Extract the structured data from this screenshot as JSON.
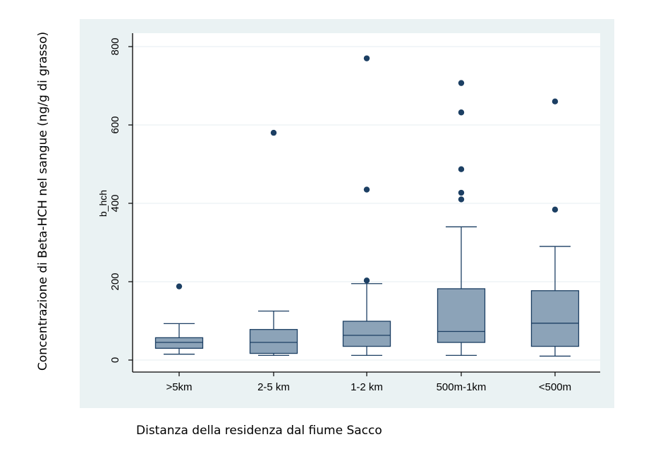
{
  "chart_data": {
    "type": "box",
    "outer_ylabel": "Concentrazione di Beta-HCH nel sangue (ng/g di grasso)",
    "inner_ylabel": "b_hch",
    "xlabel": "Distanza della residenza dal fiume Sacco",
    "categories": [
      ">5km",
      "2-5  km",
      "1-2 km",
      "500m-1km",
      "<500m"
    ],
    "yticks": [
      "0",
      "200",
      "400",
      "600",
      "800"
    ],
    "ylim": [
      0,
      800
    ],
    "grid": true,
    "boxes": [
      {
        "category": ">5km",
        "whisker_low": 15,
        "q1": 30,
        "median": 45,
        "q3": 57,
        "whisker_high": 93,
        "outliers": [
          188
        ]
      },
      {
        "category": "2-5  km",
        "whisker_low": 12,
        "q1": 17,
        "median": 45,
        "q3": 78,
        "whisker_high": 125,
        "outliers": [
          580
        ]
      },
      {
        "category": "1-2 km",
        "whisker_low": 12,
        "q1": 35,
        "median": 63,
        "q3": 99,
        "whisker_high": 195,
        "outliers": [
          203,
          435,
          770
        ]
      },
      {
        "category": "500m-1km",
        "whisker_low": 12,
        "q1": 45,
        "median": 73,
        "q3": 182,
        "whisker_high": 340,
        "outliers": [
          410,
          427,
          487,
          632,
          707
        ]
      },
      {
        "category": "<500m",
        "whisker_low": 10,
        "q1": 35,
        "median": 94,
        "q3": 177,
        "whisker_high": 290,
        "outliers": [
          384,
          660
        ]
      }
    ],
    "colors": {
      "panel": "#eaf2f3",
      "plot": "#ffffff",
      "grid": "#e6eef0",
      "box_fill": "#8ca3b8",
      "box_stroke": "#1c3f63",
      "marker": "#1c3f63",
      "axis": "#000000"
    }
  }
}
